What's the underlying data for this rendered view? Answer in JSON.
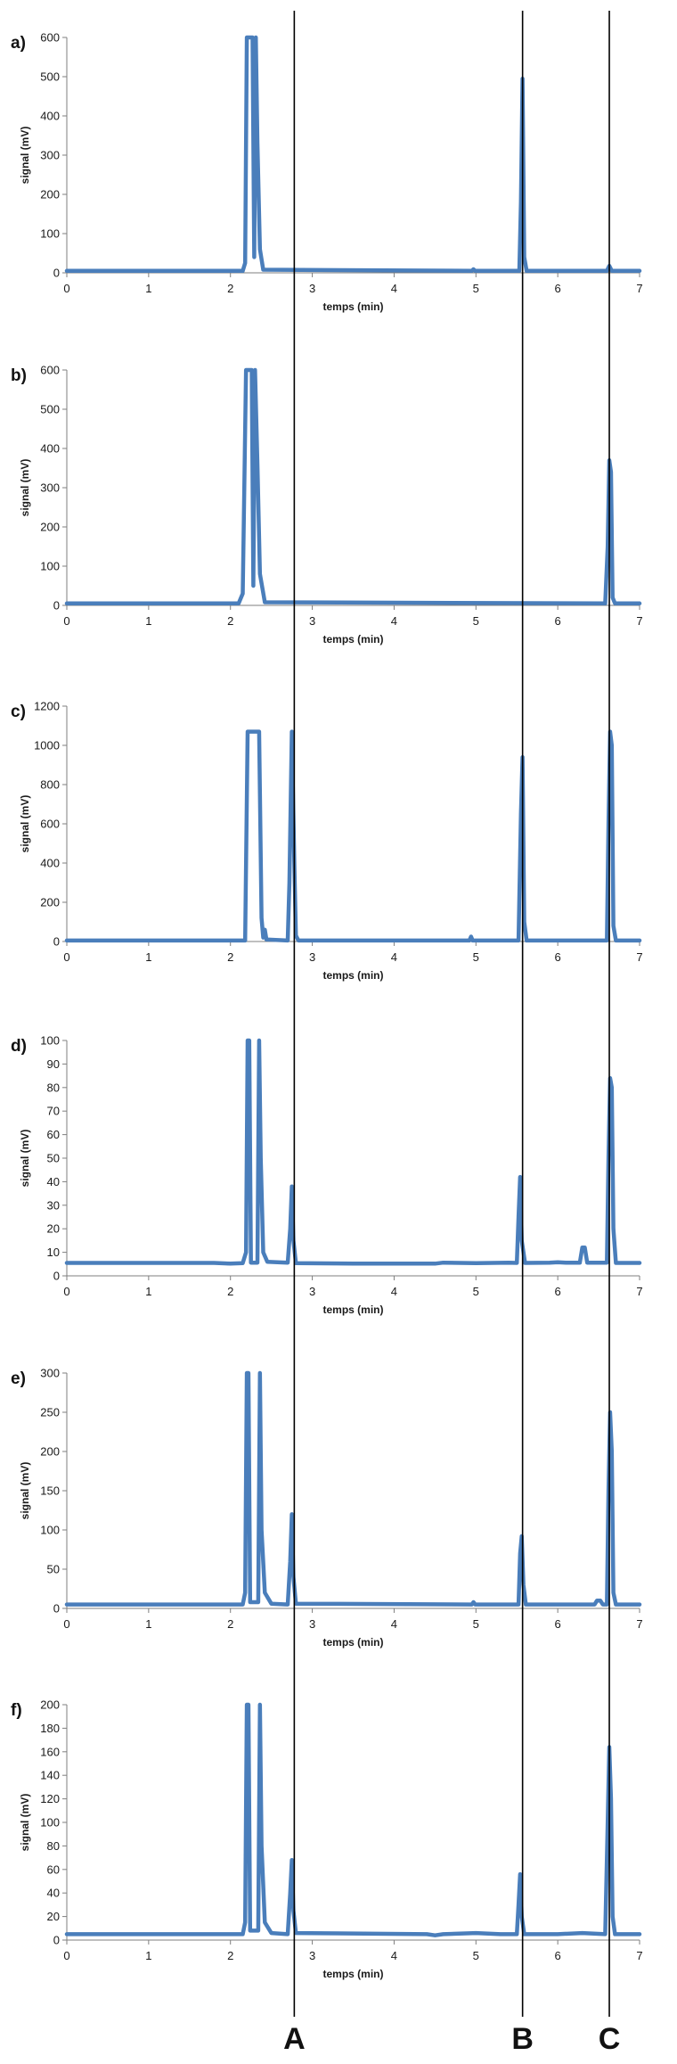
{
  "colors": {
    "trace": "#4a7ebb",
    "axis": "#7f7f7f",
    "ref_line": "#000000"
  },
  "markers": [
    {
      "label": "A",
      "x": 2.78
    },
    {
      "label": "B",
      "x": 5.57
    },
    {
      "label": "C",
      "x": 6.63
    }
  ],
  "chart_data": [
    {
      "type": "line",
      "panel": "a)",
      "xlabel": "temps (min)",
      "ylabel": "signal (mV)",
      "xlim": [
        0,
        7
      ],
      "ylim": [
        0,
        600
      ],
      "yticks": [
        0,
        100,
        200,
        300,
        400,
        500,
        600
      ],
      "xticks": [
        0,
        1,
        2,
        3,
        4,
        5,
        6,
        7
      ],
      "baseline": 5,
      "points": [
        [
          0,
          5
        ],
        [
          2.15,
          5
        ],
        [
          2.18,
          25
        ],
        [
          2.2,
          600
        ],
        [
          2.27,
          600
        ],
        [
          2.29,
          40
        ],
        [
          2.31,
          600
        ],
        [
          2.33,
          330
        ],
        [
          2.36,
          60
        ],
        [
          2.4,
          8
        ],
        [
          4.95,
          5
        ],
        [
          4.97,
          9
        ],
        [
          4.99,
          5
        ],
        [
          5.53,
          5
        ],
        [
          5.55,
          180
        ],
        [
          5.57,
          495
        ],
        [
          5.59,
          40
        ],
        [
          5.62,
          5
        ],
        [
          6.6,
          5
        ],
        [
          6.63,
          18
        ],
        [
          6.66,
          5
        ],
        [
          7,
          5
        ]
      ]
    },
    {
      "type": "line",
      "panel": "b)",
      "xlabel": "temps (min)",
      "ylabel": "signal (mV)",
      "xlim": [
        0,
        7
      ],
      "ylim": [
        0,
        600
      ],
      "yticks": [
        0,
        100,
        200,
        300,
        400,
        500,
        600
      ],
      "xticks": [
        0,
        1,
        2,
        3,
        4,
        5,
        6,
        7
      ],
      "baseline": 5,
      "points": [
        [
          0,
          5
        ],
        [
          2.1,
          5
        ],
        [
          2.15,
          30
        ],
        [
          2.19,
          600
        ],
        [
          2.26,
          600
        ],
        [
          2.28,
          50
        ],
        [
          2.3,
          600
        ],
        [
          2.33,
          360
        ],
        [
          2.36,
          80
        ],
        [
          2.42,
          8
        ],
        [
          6.58,
          5
        ],
        [
          6.61,
          150
        ],
        [
          6.63,
          370
        ],
        [
          6.65,
          340
        ],
        [
          6.67,
          20
        ],
        [
          6.7,
          5
        ],
        [
          7,
          5
        ]
      ]
    },
    {
      "type": "line",
      "panel": "c)",
      "xlabel": "temps (min)",
      "ylabel": "signal (mV)",
      "xlim": [
        0,
        7
      ],
      "ylim": [
        0,
        1200
      ],
      "yticks": [
        0,
        200,
        400,
        600,
        800,
        1000,
        1200
      ],
      "xticks": [
        0,
        1,
        2,
        3,
        4,
        5,
        6,
        7
      ],
      "baseline": 5,
      "points": [
        [
          0,
          5
        ],
        [
          2.18,
          5
        ],
        [
          2.21,
          1070
        ],
        [
          2.35,
          1070
        ],
        [
          2.38,
          120
        ],
        [
          2.4,
          20
        ],
        [
          2.42,
          60
        ],
        [
          2.44,
          10
        ],
        [
          2.7,
          5
        ],
        [
          2.72,
          300
        ],
        [
          2.75,
          1070
        ],
        [
          2.78,
          400
        ],
        [
          2.8,
          30
        ],
        [
          2.83,
          5
        ],
        [
          4.92,
          5
        ],
        [
          4.94,
          25
        ],
        [
          4.96,
          5
        ],
        [
          5.52,
          5
        ],
        [
          5.55,
          650
        ],
        [
          5.57,
          940
        ],
        [
          5.59,
          100
        ],
        [
          5.62,
          5
        ],
        [
          6.6,
          5
        ],
        [
          6.62,
          600
        ],
        [
          6.64,
          1070
        ],
        [
          6.66,
          1000
        ],
        [
          6.68,
          80
        ],
        [
          6.71,
          5
        ],
        [
          7,
          5
        ]
      ]
    },
    {
      "type": "line",
      "panel": "d)",
      "xlabel": "temps (min)",
      "ylabel": "signal (mV)",
      "xlim": [
        0,
        7
      ],
      "ylim": [
        0,
        100
      ],
      "yticks": [
        0,
        10,
        20,
        30,
        40,
        50,
        60,
        70,
        80,
        90,
        100
      ],
      "xticks": [
        0,
        1,
        2,
        3,
        4,
        5,
        6,
        7
      ],
      "baseline": 5.5,
      "points": [
        [
          0,
          5.5
        ],
        [
          1.8,
          5.5
        ],
        [
          2.0,
          5.2
        ],
        [
          2.15,
          5.4
        ],
        [
          2.19,
          10
        ],
        [
          2.21,
          100
        ],
        [
          2.23,
          100
        ],
        [
          2.25,
          5.6
        ],
        [
          2.33,
          5.6
        ],
        [
          2.35,
          100
        ],
        [
          2.37,
          50
        ],
        [
          2.4,
          10
        ],
        [
          2.45,
          6
        ],
        [
          2.7,
          5.6
        ],
        [
          2.73,
          20
        ],
        [
          2.75,
          38
        ],
        [
          2.77,
          15
        ],
        [
          2.8,
          5.4
        ],
        [
          3.5,
          5.2
        ],
        [
          4.5,
          5.2
        ],
        [
          4.6,
          5.6
        ],
        [
          5.0,
          5.4
        ],
        [
          5.4,
          5.6
        ],
        [
          5.5,
          5.5
        ],
        [
          5.52,
          25
        ],
        [
          5.54,
          42
        ],
        [
          5.56,
          15
        ],
        [
          5.6,
          5.5
        ],
        [
          5.9,
          5.6
        ],
        [
          6.0,
          5.8
        ],
        [
          6.1,
          5.6
        ],
        [
          6.27,
          5.6
        ],
        [
          6.3,
          12
        ],
        [
          6.33,
          12
        ],
        [
          6.36,
          5.6
        ],
        [
          6.6,
          5.6
        ],
        [
          6.62,
          50
        ],
        [
          6.64,
          84
        ],
        [
          6.66,
          80
        ],
        [
          6.68,
          20
        ],
        [
          6.71,
          5.5
        ],
        [
          7,
          5.5
        ]
      ]
    },
    {
      "type": "line",
      "panel": "e)",
      "xlabel": "temps (min)",
      "ylabel": "signal (mV)",
      "xlim": [
        0,
        7
      ],
      "ylim": [
        0,
        300
      ],
      "yticks": [
        0,
        50,
        100,
        150,
        200,
        250,
        300
      ],
      "xticks": [
        0,
        1,
        2,
        3,
        4,
        5,
        6,
        7
      ],
      "baseline": 5,
      "points": [
        [
          0,
          5
        ],
        [
          2.15,
          5
        ],
        [
          2.18,
          20
        ],
        [
          2.2,
          300
        ],
        [
          2.22,
          300
        ],
        [
          2.24,
          8
        ],
        [
          2.34,
          8
        ],
        [
          2.36,
          300
        ],
        [
          2.38,
          100
        ],
        [
          2.42,
          20
        ],
        [
          2.5,
          6
        ],
        [
          2.7,
          5
        ],
        [
          2.73,
          60
        ],
        [
          2.75,
          120
        ],
        [
          2.77,
          40
        ],
        [
          2.8,
          6
        ],
        [
          4.95,
          5
        ],
        [
          4.97,
          8
        ],
        [
          4.99,
          5
        ],
        [
          5.52,
          5
        ],
        [
          5.54,
          70
        ],
        [
          5.56,
          92
        ],
        [
          5.58,
          30
        ],
        [
          5.61,
          5
        ],
        [
          6.45,
          5
        ],
        [
          6.48,
          10
        ],
        [
          6.52,
          10
        ],
        [
          6.55,
          5
        ],
        [
          6.6,
          5
        ],
        [
          6.62,
          150
        ],
        [
          6.64,
          250
        ],
        [
          6.66,
          200
        ],
        [
          6.68,
          20
        ],
        [
          6.71,
          5
        ],
        [
          7,
          5
        ]
      ]
    },
    {
      "type": "line",
      "panel": "f)",
      "xlabel": "temps (min)",
      "ylabel": "signal (mV)",
      "xlim": [
        0,
        7
      ],
      "ylim": [
        0,
        200
      ],
      "yticks": [
        0,
        20,
        40,
        60,
        80,
        100,
        120,
        140,
        160,
        180,
        200
      ],
      "xticks": [
        0,
        1,
        2,
        3,
        4,
        5,
        6,
        7
      ],
      "baseline": 5,
      "points": [
        [
          0,
          5
        ],
        [
          2.15,
          5
        ],
        [
          2.18,
          15
        ],
        [
          2.2,
          200
        ],
        [
          2.22,
          200
        ],
        [
          2.24,
          8
        ],
        [
          2.34,
          8
        ],
        [
          2.36,
          200
        ],
        [
          2.38,
          80
        ],
        [
          2.42,
          15
        ],
        [
          2.5,
          6
        ],
        [
          2.7,
          5
        ],
        [
          2.73,
          40
        ],
        [
          2.75,
          68
        ],
        [
          2.77,
          25
        ],
        [
          2.8,
          6
        ],
        [
          4.4,
          5
        ],
        [
          4.5,
          4
        ],
        [
          4.6,
          5
        ],
        [
          5.0,
          6
        ],
        [
          5.3,
          5
        ],
        [
          5.5,
          5
        ],
        [
          5.52,
          30
        ],
        [
          5.54,
          56
        ],
        [
          5.56,
          20
        ],
        [
          5.59,
          5
        ],
        [
          6.0,
          5
        ],
        [
          6.3,
          6
        ],
        [
          6.58,
          5
        ],
        [
          6.61,
          100
        ],
        [
          6.63,
          164
        ],
        [
          6.65,
          120
        ],
        [
          6.67,
          20
        ],
        [
          6.7,
          5
        ],
        [
          7,
          5
        ]
      ]
    }
  ]
}
